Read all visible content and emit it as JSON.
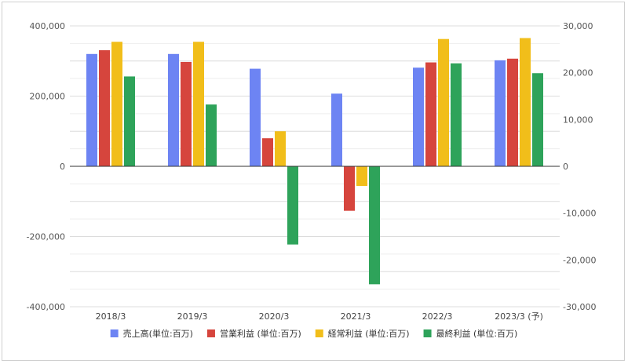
{
  "chart_data": {
    "type": "bar",
    "categories": [
      "2018/3",
      "2019/3",
      "2020/3",
      "2021/3",
      "2022/3",
      "2023/3 (予)"
    ],
    "series": [
      {
        "name": "売上高(単位:百万)",
        "axis": "left",
        "color": "#6d84f3",
        "values": [
          320000,
          320000,
          278000,
          207000,
          281000,
          302000
        ]
      },
      {
        "name": "営業利益 (単位:百万)",
        "axis": "right",
        "color": "#d6453d",
        "values": [
          24800,
          22300,
          6000,
          -9500,
          22200,
          23000
        ]
      },
      {
        "name": "経常利益 (単位:百万)",
        "axis": "right",
        "color": "#f1be1a",
        "values": [
          26600,
          26600,
          7500,
          -4200,
          27200,
          27400
        ]
      },
      {
        "name": "最終利益 (単位:百万)",
        "axis": "right",
        "color": "#2ea35a",
        "values": [
          19200,
          13200,
          -16700,
          -25200,
          22000,
          19900
        ]
      }
    ],
    "left_axis": {
      "ylim": [
        -400000,
        400000
      ],
      "ticks": [
        400000,
        200000,
        0,
        -200000,
        -400000
      ],
      "tick_labels": [
        "400,000",
        "200,000",
        "0",
        "-200,000",
        "-400,000"
      ]
    },
    "right_axis": {
      "ylim": [
        -30000,
        30000
      ],
      "ticks": [
        30000,
        20000,
        10000,
        0,
        -10000,
        -20000,
        -30000
      ],
      "tick_labels": [
        "30,000",
        "20,000",
        "10,000",
        "0",
        "-10,000",
        "-20,000",
        "-30,000"
      ]
    },
    "grid": true,
    "legend": "bottom"
  }
}
